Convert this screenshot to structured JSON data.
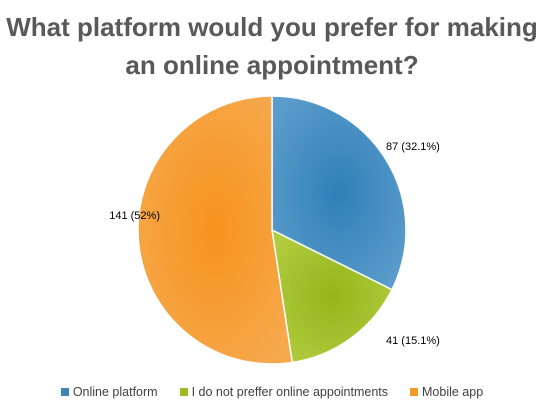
{
  "chart_data": {
    "type": "pie",
    "title": "What platform would you prefer for making an online appointment?",
    "categories": [
      "Online platform",
      "I do not preffer online appointments",
      "Mobile app"
    ],
    "values": [
      87,
      41,
      141
    ],
    "percents": [
      32.1,
      15.1,
      52
    ],
    "data_labels": [
      "87 (32.1%)",
      "41 (15.1%)",
      "141 (52%)"
    ],
    "colors": [
      "#3a87bd",
      "#9bbb1e",
      "#f59a2a"
    ],
    "legend_position": "bottom"
  }
}
